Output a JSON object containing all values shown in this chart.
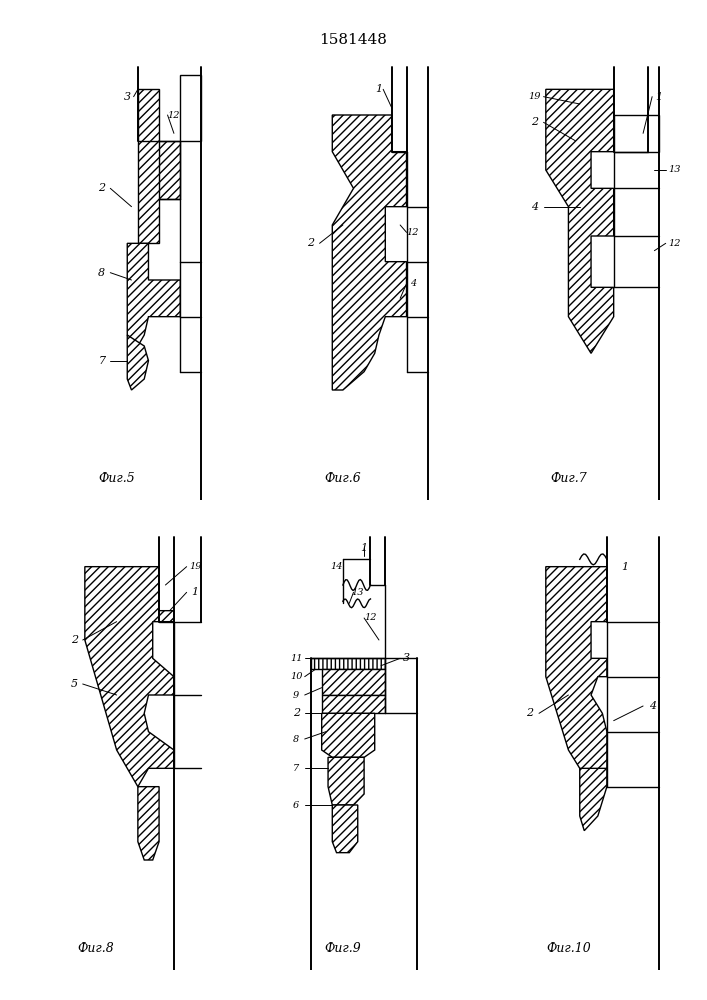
{
  "title": "1581448",
  "title_fontsize": 11,
  "background_color": "#ffffff",
  "fig_labels": [
    "Фиг.5",
    "Фиг.6",
    "Фиг.7",
    "Фиг.8",
    "Фиг.9",
    "Фиг.10"
  ],
  "label_fontsize": 8,
  "figlabel_fontsize": 9
}
